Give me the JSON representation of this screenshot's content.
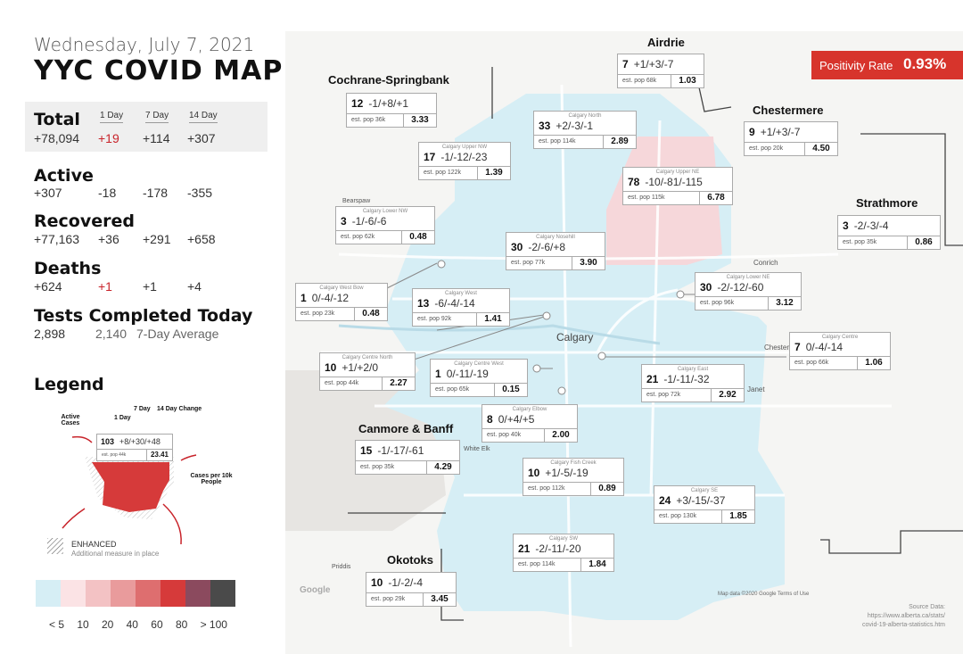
{
  "header": {
    "date": "Wednesday, July 7, 2021",
    "title": "YYC COVID MAP"
  },
  "positivity": {
    "label": "Positivity Rate",
    "value": "0.93%"
  },
  "stats": {
    "col_1day": "1 Day",
    "col_7day": "7 Day",
    "col_14day": "14 Day",
    "total": {
      "label": "Total",
      "value": "+78,094",
      "d1": "+19",
      "d7": "+114",
      "d14": "+307"
    },
    "active": {
      "label": "Active",
      "value": "+307",
      "d1": "-18",
      "d7": "-178",
      "d14": "-355"
    },
    "recovered": {
      "label": "Recovered",
      "value": "+77,163",
      "d1": "+36",
      "d7": "+291",
      "d14": "+658"
    },
    "deaths": {
      "label": "Deaths",
      "value": "+624",
      "d1": "+1",
      "d7": "+1",
      "d14": "+4"
    },
    "tests": {
      "label": "Tests Completed Today",
      "value": "2,898",
      "avg": "2,140",
      "avg_label": "7-Day Average"
    }
  },
  "legend": {
    "title": "Legend",
    "active_cases": "Active Cases",
    "one_day": "1 Day",
    "seven_day": "7 Day",
    "fourteen_day": "14 Day Change",
    "cases_per": "Cases per 10k People",
    "sample_cases": "103",
    "sample_change": "+8/+30/+48",
    "sample_pop": "est. pop 44k",
    "sample_rate": "23.41",
    "enhanced": "ENHANCED",
    "enhanced_desc": "Additional measure in place",
    "scale_colors": [
      "#d6eef5",
      "#fbe3e5",
      "#f3c2c4",
      "#e99b9c",
      "#de6e6f",
      "#d63a3a",
      "#8b4a5e",
      "#4a4a4a"
    ],
    "scale_labels": [
      "< 5",
      "10",
      "20",
      "40",
      "60",
      "80",
      "> 100"
    ]
  },
  "map_labels": {
    "calgary": "Calgary",
    "conrich": "Conrich",
    "janet": "Janet",
    "chestermere_town": "Chestermere",
    "white_elk": "White Elk",
    "priddis": "Priddis",
    "bearspaw": "Bearspaw",
    "google": "Google",
    "map_data": "Map data ©2020 Google    Terms of Use"
  },
  "source": {
    "title": "Source Data:",
    "url1": "https://www.alberta.ca/stats/",
    "url2": "covid-19-alberta-statistics.htm"
  },
  "regions": [
    {
      "id": "cochrane",
      "ext": "Cochrane-Springbank",
      "name": "",
      "cases": "12",
      "chg": "-1/+8/+1",
      "pop": "est. pop 36k",
      "rate": "3.33"
    },
    {
      "id": "airdrie",
      "ext": "Airdrie",
      "name": "",
      "cases": "7",
      "chg": "+1/+3/-7",
      "pop": "est. pop 68k",
      "rate": "1.03"
    },
    {
      "id": "chestermere",
      "ext": "Chestermere",
      "name": "",
      "cases": "9",
      "chg": "+1/+3/-7",
      "pop": "est. pop 20k",
      "rate": "4.50"
    },
    {
      "id": "strathmore",
      "ext": "Strathmore",
      "name": "",
      "cases": "3",
      "chg": "-2/-3/-4",
      "pop": "est. pop 35k",
      "rate": "0.86"
    },
    {
      "id": "canmore",
      "ext": "Canmore & Banff",
      "name": "",
      "cases": "15",
      "chg": "-1/-17/-61",
      "pop": "est. pop 35k",
      "rate": "4.29"
    },
    {
      "id": "okotoks",
      "ext": "Okotoks",
      "name": "",
      "cases": "10",
      "chg": "-1/-2/-4",
      "pop": "est. pop 29k",
      "rate": "3.45"
    },
    {
      "id": "north",
      "ext": "",
      "name": "Calgary North",
      "cases": "33",
      "chg": "+2/-3/-1",
      "pop": "est. pop 114k",
      "rate": "2.89"
    },
    {
      "id": "uppernw",
      "ext": "",
      "name": "Calgary Upper NW",
      "cases": "17",
      "chg": "-1/-12/-23",
      "pop": "est. pop 122k",
      "rate": "1.39"
    },
    {
      "id": "upperne",
      "ext": "",
      "name": "Calgary Upper NE",
      "cases": "78",
      "chg": "-10/-81/-115",
      "pop": "est. pop 115k",
      "rate": "6.78"
    },
    {
      "id": "lowernw",
      "ext": "",
      "name": "Calgary Lower NW",
      "cases": "3",
      "chg": "-1/-6/-6",
      "pop": "est. pop 62k",
      "rate": "0.48"
    },
    {
      "id": "nosehill",
      "ext": "",
      "name": "Calgary Nosehill",
      "cases": "30",
      "chg": "-2/-6/+8",
      "pop": "est. pop 77k",
      "rate": "3.90"
    },
    {
      "id": "lowerne",
      "ext": "",
      "name": "Calgary Lower NE",
      "cases": "30",
      "chg": "-2/-12/-60",
      "pop": "est. pop 96k",
      "rate": "3.12"
    },
    {
      "id": "westbow",
      "ext": "",
      "name": "Calgary West Bow",
      "cases": "1",
      "chg": "0/-4/-12",
      "pop": "est. pop 23k",
      "rate": "0.48"
    },
    {
      "id": "west",
      "ext": "",
      "name": "Calgary West",
      "cases": "13",
      "chg": "-6/-4/-14",
      "pop": "est. pop 92k",
      "rate": "1.41"
    },
    {
      "id": "centre",
      "ext": "",
      "name": "Calgary Centre",
      "cases": "7",
      "chg": "0/-4/-14",
      "pop": "est. pop 66k",
      "rate": "1.06"
    },
    {
      "id": "centrenorth",
      "ext": "",
      "name": "Calgary Centre North",
      "cases": "10",
      "chg": "+1/+2/0",
      "pop": "est. pop 44k",
      "rate": "2.27"
    },
    {
      "id": "centrewest",
      "ext": "",
      "name": "Calgary Centre West",
      "cases": "1",
      "chg": "0/-11/-19",
      "pop": "est. pop 65k",
      "rate": "0.15"
    },
    {
      "id": "east",
      "ext": "",
      "name": "Calgary East",
      "cases": "21",
      "chg": "-1/-11/-32",
      "pop": "est. pop 72k",
      "rate": "2.92"
    },
    {
      "id": "elbow",
      "ext": "",
      "name": "Calgary Elbow",
      "cases": "8",
      "chg": "0/+4/+5",
      "pop": "est. pop 40k",
      "rate": "2.00"
    },
    {
      "id": "fishcreek",
      "ext": "",
      "name": "Calgary Fish Creek",
      "cases": "10",
      "chg": "+1/-5/-19",
      "pop": "est. pop 112k",
      "rate": "0.89"
    },
    {
      "id": "se",
      "ext": "",
      "name": "Calgary SE",
      "cases": "24",
      "chg": "+3/-15/-37",
      "pop": "est. pop 130k",
      "rate": "1.85"
    },
    {
      "id": "sw",
      "ext": "",
      "name": "Calgary SW",
      "cases": "21",
      "chg": "-2/-11/-20",
      "pop": "est. pop 114k",
      "rate": "1.84"
    }
  ]
}
